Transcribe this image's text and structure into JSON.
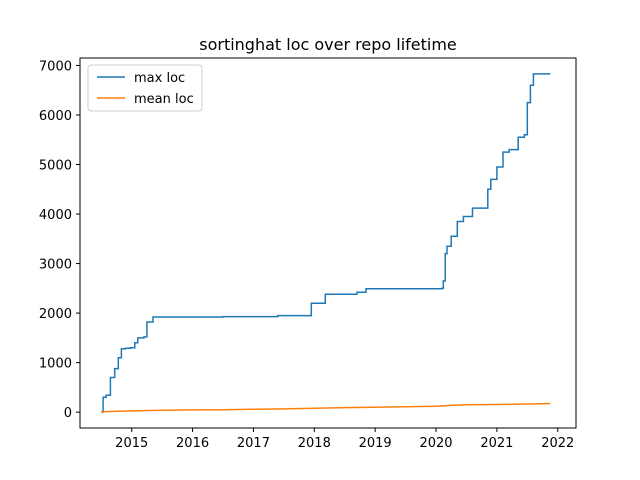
{
  "chart_data": {
    "type": "line",
    "title": "sortinghat loc over repo lifetime",
    "xlabel": "",
    "ylabel": "",
    "xlim": [
      2014.15,
      2022.3
    ],
    "ylim": [
      -320,
      7150
    ],
    "x_ticks": [
      2015,
      2016,
      2017,
      2018,
      2019,
      2020,
      2021,
      2022
    ],
    "x_tick_labels": [
      "2015",
      "2016",
      "2017",
      "2018",
      "2019",
      "2020",
      "2021",
      "2022"
    ],
    "y_ticks": [
      0,
      1000,
      2000,
      3000,
      4000,
      5000,
      6000,
      7000
    ],
    "y_tick_labels": [
      "0",
      "1000",
      "2000",
      "3000",
      "4000",
      "5000",
      "6000",
      "7000"
    ],
    "grid": false,
    "legend_position": "upper-left",
    "series": [
      {
        "name": "max loc",
        "color": "#1f77b4",
        "step": true,
        "x": [
          2014.5,
          2014.53,
          2014.58,
          2014.65,
          2014.72,
          2014.78,
          2014.83,
          2014.9,
          2014.98,
          2015.05,
          2015.1,
          2015.2,
          2015.25,
          2015.35,
          2016.5,
          2017.4,
          2017.95,
          2018.18,
          2018.7,
          2018.85,
          2020.1,
          2020.12,
          2020.15,
          2020.18,
          2020.25,
          2020.35,
          2020.45,
          2020.6,
          2020.85,
          2020.9,
          2021.0,
          2021.1,
          2021.2,
          2021.35,
          2021.45,
          2021.5,
          2021.55,
          2021.6,
          2021.88
        ],
        "y": [
          0,
          300,
          340,
          700,
          880,
          1100,
          1280,
          1290,
          1300,
          1400,
          1500,
          1520,
          1820,
          1920,
          1930,
          1950,
          2200,
          2380,
          2420,
          2490,
          2500,
          2650,
          3200,
          3350,
          3550,
          3850,
          3950,
          4120,
          4500,
          4700,
          4950,
          5250,
          5300,
          5550,
          5600,
          6250,
          6600,
          6830,
          6830
        ]
      },
      {
        "name": "mean loc",
        "color": "#ff7f0e",
        "step": false,
        "x": [
          2014.5,
          2015.0,
          2015.5,
          2016.0,
          2016.5,
          2017.0,
          2017.5,
          2018.0,
          2018.5,
          2019.0,
          2019.5,
          2020.0,
          2020.2,
          2020.5,
          2021.0,
          2021.5,
          2021.88
        ],
        "y": [
          8,
          25,
          38,
          45,
          50,
          58,
          65,
          78,
          92,
          100,
          108,
          118,
          135,
          148,
          155,
          165,
          175
        ]
      }
    ]
  }
}
